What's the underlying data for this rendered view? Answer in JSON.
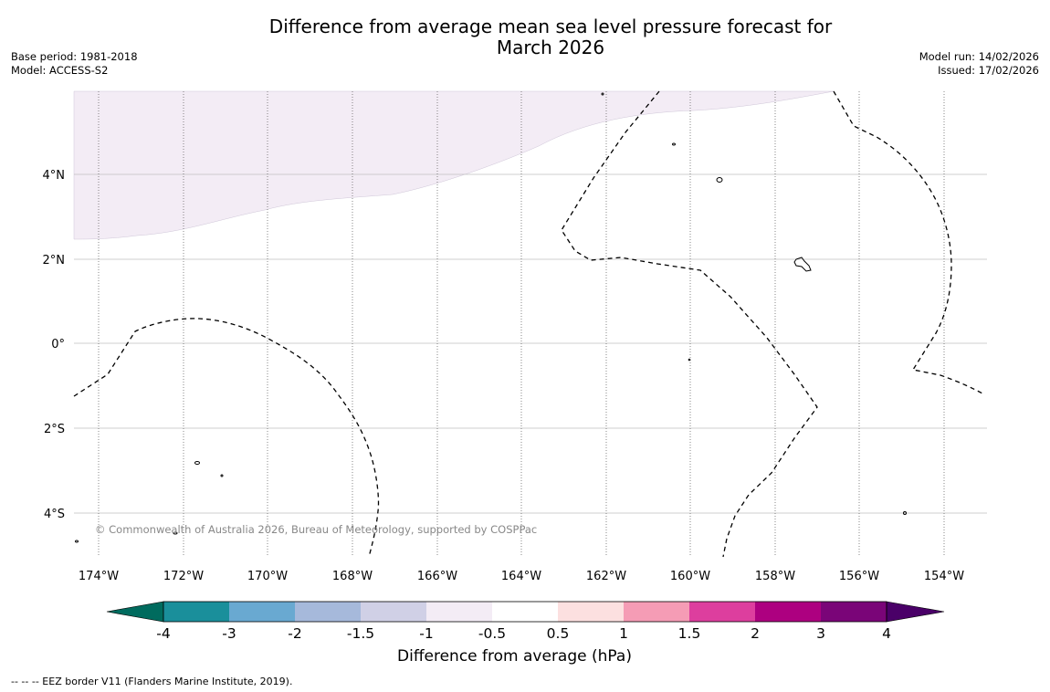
{
  "header": {
    "title_line1": "Difference from average mean sea level pressure forecast for",
    "title_line2": "March 2026",
    "base_period": "Base period: 1981-2018",
    "model": "Model: ACCESS-S2",
    "model_run": "Model run: 14/02/2026",
    "issued": "Issued: 17/02/2026"
  },
  "map": {
    "lat_labels": [
      "4°N",
      "2°N",
      "0°",
      "2°S",
      "4°S"
    ],
    "lon_labels": [
      "174°W",
      "172°W",
      "170°W",
      "168°W",
      "166°W",
      "164°W",
      "162°W",
      "160°W",
      "158°W",
      "156°W",
      "154°W"
    ],
    "copyright": "© Commonwealth of Australia 2026, Bureau of Meteorology, supported by COSPPac",
    "anomaly_fill_color": "#f3ecf5"
  },
  "colorbar": {
    "title": "Difference from average (hPa)",
    "tick_labels": [
      "-4",
      "-3",
      "-2",
      "-1.5",
      "-1",
      "-0.5",
      "0.5",
      "1",
      "1.5",
      "2",
      "3",
      "4"
    ],
    "colors": [
      "#006b5e",
      "#1a8f9b",
      "#69a9d1",
      "#a6b9db",
      "#d0d0e6",
      "#f3ecf5",
      "#ffffff",
      "#fce0e0",
      "#f59cb5",
      "#dd3e9e",
      "#ad0080",
      "#7a0578",
      "#4a0068"
    ]
  },
  "legend": {
    "eez_note": "--  --  -- EEZ border V11 (Flanders Marine Institute, 2019)."
  }
}
